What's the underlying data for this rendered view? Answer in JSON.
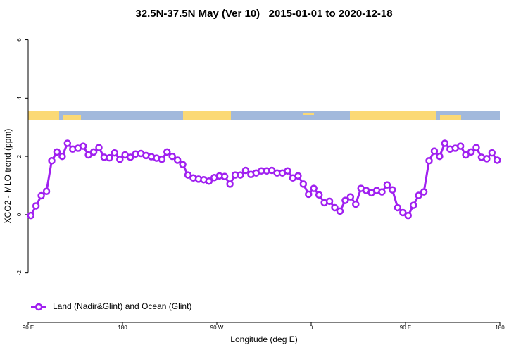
{
  "chart_data": {
    "type": "line",
    "title": "32.5N-37.5N May (Ver 10)   2015-01-01 to 2020-12-18",
    "x_label": "Longitude (deg E)",
    "y_label": "XCO2 - MLO trend (ppm)",
    "xlim": [
      90,
      540
    ],
    "xticks": [
      {
        "value": 90,
        "label": "90 E"
      },
      {
        "value": 180,
        "label": "180"
      },
      {
        "value": 270,
        "label": "90 W"
      },
      {
        "value": 360,
        "label": "0"
      },
      {
        "value": 450,
        "label": "90 E"
      },
      {
        "value": 540,
        "label": "180"
      }
    ],
    "ylim": [
      -3.7,
      6.4
    ],
    "yticks": [
      -2,
      0,
      2,
      4,
      6
    ],
    "legend_position": "bottomleft",
    "x": [
      92.5,
      97.5,
      102.5,
      107.5,
      112.5,
      117.5,
      122.5,
      127.5,
      132.5,
      137.5,
      142.5,
      147.5,
      152.5,
      157.5,
      162.5,
      167.5,
      172.5,
      177.5,
      182.5,
      187.5,
      192.5,
      197.5,
      202.5,
      207.5,
      212.5,
      217.5,
      222.5,
      227.5,
      232.5,
      237.5,
      242.5,
      247.5,
      252.5,
      257.5,
      262.5,
      267.5,
      272.5,
      277.5,
      282.5,
      287.5,
      292.5,
      297.5,
      302.5,
      307.5,
      312.5,
      317.5,
      322.5,
      327.5,
      332.5,
      337.5,
      342.5,
      347.5,
      352.5,
      357.5,
      362.5,
      367.5,
      372.5,
      377.5,
      382.5,
      387.5,
      392.5,
      397.5,
      402.5,
      407.5,
      412.5,
      417.5,
      422.5,
      427.5,
      432.5,
      437.5,
      442.5,
      447.5,
      452.5,
      457.5,
      462.5,
      467.5,
      472.5,
      477.5,
      482.5,
      487.5,
      492.5,
      497.5,
      502.5,
      507.5,
      512.5,
      517.5,
      522.5,
      527.5,
      532.5,
      537.5
    ],
    "series": [
      {
        "name": "Land (Nadir&Glint) and Ocean (Glint)",
        "color": "#a020f0",
        "values": [
          -0.03,
          0.3,
          0.65,
          0.8,
          1.85,
          2.15,
          2.0,
          2.45,
          2.25,
          2.28,
          2.35,
          2.05,
          2.15,
          2.3,
          1.97,
          1.95,
          2.12,
          1.9,
          2.05,
          1.97,
          2.08,
          2.1,
          2.03,
          1.99,
          1.94,
          1.9,
          2.15,
          2.0,
          1.87,
          1.72,
          1.36,
          1.26,
          1.22,
          1.2,
          1.15,
          1.27,
          1.33,
          1.31,
          1.05,
          1.36,
          1.36,
          1.52,
          1.38,
          1.43,
          1.5,
          1.5,
          1.52,
          1.43,
          1.43,
          1.5,
          1.26,
          1.33,
          1.05,
          0.7,
          0.9,
          0.68,
          0.41,
          0.46,
          0.24,
          0.12,
          0.49,
          0.61,
          0.36,
          0.9,
          0.83,
          0.75,
          0.83,
          0.78,
          1.02,
          0.85,
          0.24,
          0.07,
          -0.03,
          0.32,
          0.66,
          0.78,
          1.85,
          2.18,
          2.0,
          2.45,
          2.25,
          2.28,
          2.35,
          2.05,
          2.15,
          2.3,
          1.97,
          1.92,
          2.12,
          1.87
        ]
      }
    ]
  }
}
